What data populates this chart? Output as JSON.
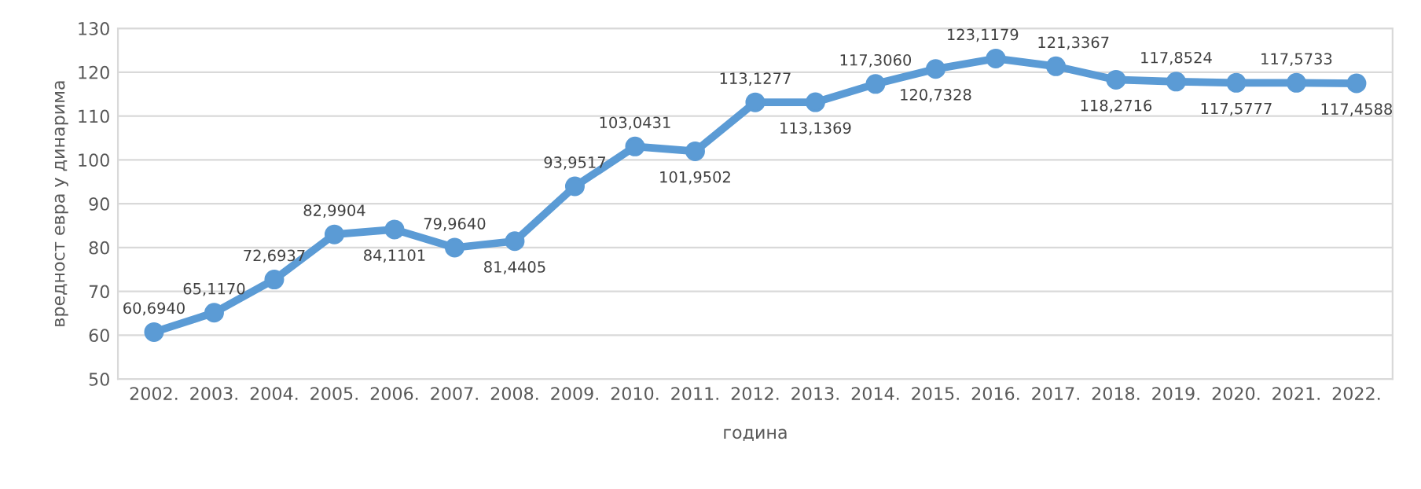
{
  "chart_data": {
    "type": "line",
    "xlabel": "година",
    "ylabel": "вредност евра у динарима",
    "categories": [
      "2002.",
      "2003.",
      "2004.",
      "2005.",
      "2006.",
      "2007.",
      "2008.",
      "2009.",
      "2010.",
      "2011.",
      "2012.",
      "2013.",
      "2014.",
      "2015.",
      "2016.",
      "2017.",
      "2018.",
      "2019.",
      "2020.",
      "2021.",
      "2022."
    ],
    "series": [
      {
        "color": "#5b9bd5",
        "values": [
          60.694,
          65.117,
          72.6937,
          82.9904,
          84.1101,
          79.964,
          81.4405,
          93.9517,
          103.0431,
          101.9502,
          113.1277,
          113.1369,
          117.306,
          120.7328,
          123.1179,
          121.3367,
          118.2716,
          117.8524,
          117.5777,
          117.5733,
          117.4588
        ],
        "value_labels": [
          "60,6940",
          "65,1170",
          "72,6937",
          "82,9904",
          "84,1101",
          "79,9640",
          "81,4405",
          "93,9517",
          "103,0431",
          "101,9502",
          "113,1277",
          "113,1369",
          "117,3060",
          "120,7328",
          "123,1179",
          "121,3367",
          "118,2716",
          "117,8524",
          "117,5777",
          "117,5733",
          "117,4588"
        ]
      }
    ],
    "ylim": [
      50,
      130
    ],
    "yticks": [
      50,
      60,
      70,
      80,
      90,
      100,
      110,
      120,
      130
    ],
    "grid": "y",
    "marker": "circle",
    "line_style": "solid",
    "legend": false
  }
}
